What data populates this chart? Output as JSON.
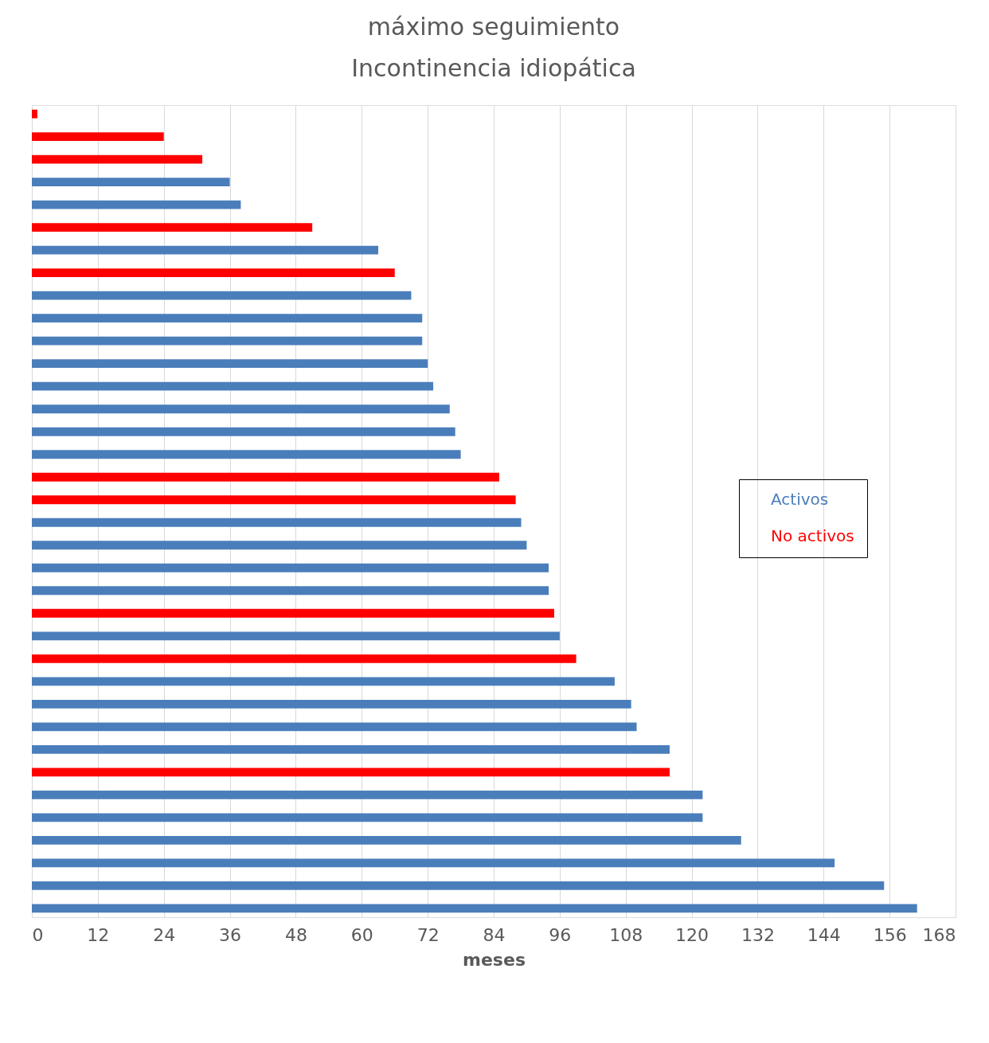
{
  "chart_data": {
    "type": "bar",
    "orientation": "horizontal",
    "title": "máximo seguimiento\nIncontinencia idiopática",
    "xlabel": "meses",
    "categories": [
      null,
      null,
      null,
      null,
      null,
      null,
      null,
      null,
      null,
      null,
      null,
      null,
      null,
      null,
      null,
      null,
      null,
      null,
      null,
      null,
      null,
      null,
      null,
      null,
      null,
      null,
      null,
      null,
      null,
      null,
      null,
      null,
      null,
      null,
      null,
      null
    ],
    "series": [
      {
        "name": "Activos",
        "color": "#4a7ebb",
        "values": [
          null,
          null,
          null,
          36,
          38,
          null,
          63,
          null,
          69,
          71,
          71,
          72,
          73,
          76,
          77,
          78,
          null,
          null,
          89,
          90,
          94,
          94,
          null,
          96,
          null,
          106,
          109,
          110,
          116,
          null,
          122,
          122,
          129,
          146,
          155,
          161
        ]
      },
      {
        "name": "No activos",
        "color": "#ff0000",
        "values": [
          1,
          24,
          31,
          null,
          null,
          51,
          null,
          66,
          null,
          null,
          null,
          null,
          null,
          null,
          null,
          null,
          85,
          88,
          null,
          null,
          null,
          null,
          95,
          null,
          99,
          null,
          null,
          null,
          null,
          116,
          null,
          null,
          null,
          null,
          null,
          null
        ]
      }
    ],
    "xlim": [
      0,
      168
    ],
    "xticks": [
      0,
      12,
      24,
      36,
      48,
      60,
      72,
      84,
      96,
      108,
      120,
      132,
      144,
      156,
      168
    ],
    "grid": "x",
    "legend": "right",
    "tick_labels": "x"
  }
}
